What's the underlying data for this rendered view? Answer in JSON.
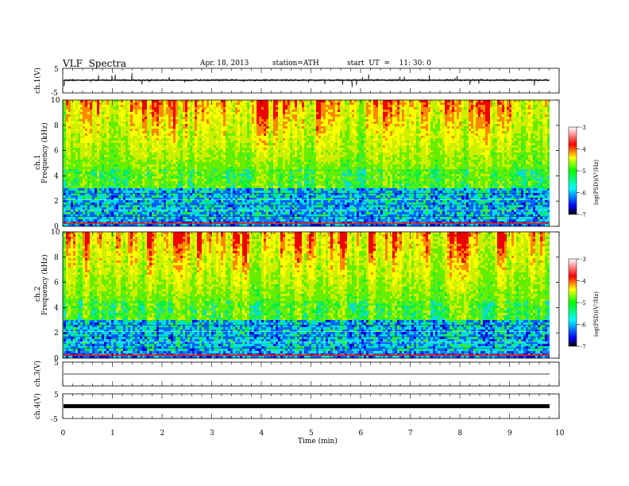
{
  "header": {
    "title": "VLF  Spectra",
    "date": "Apr. 18, 2013",
    "station": "station=ATH",
    "start": "start  UT  =    11: 30: 0"
  },
  "colors": {
    "spectrogram_low": "#0000ff",
    "spectrogram_mid": "#00ff00",
    "spectrogram_high": "#ff0000",
    "colorbar": [
      "#000000",
      "#0000ff",
      "#00ffff",
      "#00ff00",
      "#ffff00",
      "#ff0000",
      "#ffffff"
    ]
  },
  "chart_data": [
    {
      "type": "line",
      "id": "ch1-waveform",
      "ylabel": "ch.1(V)",
      "ylim": [
        -5,
        5
      ],
      "y_ticks": [
        5,
        -5
      ],
      "baseline_v": 0.2,
      "noise_amplitude_v": 0.8,
      "xlim": [
        0,
        10
      ],
      "data_end_min": 9.8
    },
    {
      "type": "heatmap",
      "id": "ch1-spectrogram",
      "ylabel_channel": "ch.1",
      "ylabel": "Frequency  (kHz)",
      "ylim": [
        0,
        10
      ],
      "y_ticks": [
        0,
        2,
        4,
        6,
        8,
        10
      ],
      "xlim": [
        0,
        10
      ],
      "data_end_min": 9.8,
      "colorbar": {
        "label": "log(PSD)(V²/Hz)",
        "range": [
          -7,
          -3
        ],
        "ticks": [
          -3,
          -4,
          -5,
          -6,
          -7
        ]
      }
    },
    {
      "type": "heatmap",
      "id": "ch2-spectrogram",
      "ylabel_channel": "ch.2",
      "ylabel": "Frequency  (kHz)",
      "ylim": [
        0,
        10
      ],
      "y_ticks": [
        0,
        2,
        4,
        6,
        8,
        10
      ],
      "xlim": [
        0,
        10
      ],
      "data_end_min": 9.8,
      "colorbar": {
        "label": "log(PSD)(V²/Hz)",
        "range": [
          -7,
          -3
        ],
        "ticks": [
          -3,
          -4,
          -5,
          -6,
          -7
        ]
      }
    },
    {
      "type": "line",
      "id": "ch3-waveform",
      "ylabel": "ch.3(V)",
      "ylim": [
        -5,
        5
      ],
      "y_ticks": [
        5
      ],
      "baseline_v": -0.2,
      "xlim": [
        0,
        10
      ],
      "data_end_min": 9.8
    },
    {
      "type": "line",
      "id": "ch4-waveform",
      "ylabel": "ch.4(V)",
      "ylim": [
        -5,
        5
      ],
      "y_ticks": [
        5,
        -5
      ],
      "baseline_v": 0.2,
      "xlim": [
        0,
        10
      ],
      "data_end_min": 9.8,
      "xlabel": "Time  (min)",
      "x_ticks": [
        0,
        1,
        2,
        3,
        4,
        5,
        6,
        7,
        8,
        9,
        10
      ]
    }
  ]
}
